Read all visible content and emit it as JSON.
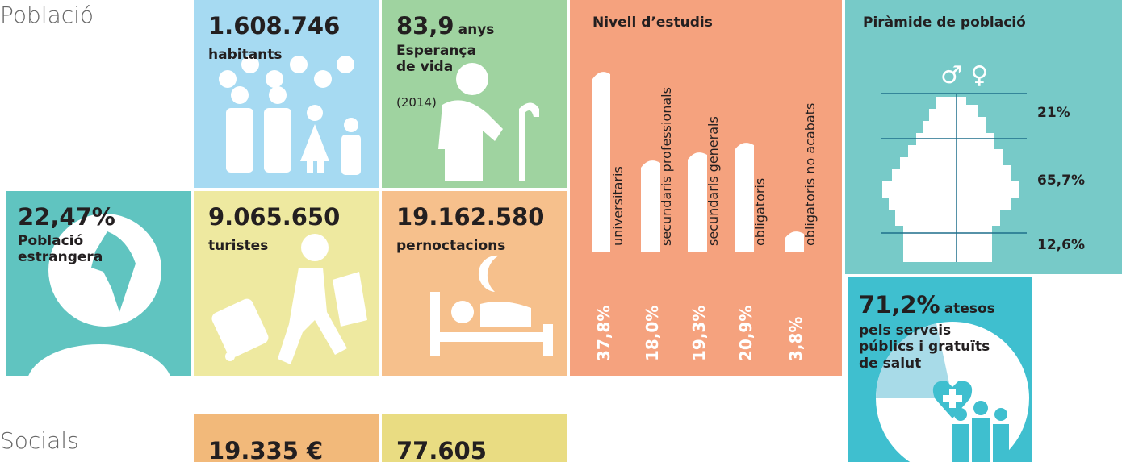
{
  "headings": [
    "Població",
    "Socials"
  ],
  "habitants": {
    "value": "1.608.746",
    "label": "habitants"
  },
  "esperanca": {
    "value": "83,9",
    "unit": "anys",
    "label": "Esperança de vida",
    "note": "(2014)"
  },
  "estrangera": {
    "value": "22,47%",
    "label": "Població estrangera"
  },
  "turistes": {
    "value": "9.065.650",
    "label": "turistes"
  },
  "pernoctacions": {
    "value": "19.162.580",
    "label": "pernoctacions"
  },
  "estudis": {
    "title": "Nivell d’estudis",
    "levels": [
      {
        "value": "37,8%",
        "label": "universitaris"
      },
      {
        "value": "18,0%",
        "label": "secundaris professionals"
      },
      {
        "value": "19,3%",
        "label": "secundaris generals"
      },
      {
        "value": "20,9%",
        "label": "obligatoris"
      },
      {
        "value": "3,8%",
        "label": "obligatoris no acabats"
      }
    ]
  },
  "piramide": {
    "title": "Piràmide de població",
    "symbols": "♂ ♀",
    "bands": [
      "21%",
      "65,7%",
      "12,6%"
    ]
  },
  "salut": {
    "value": "71,2%",
    "unit": "atesos",
    "label": "pels serveis públics i gratuïts de salut"
  },
  "socials": [
    {
      "value": "19.335 €"
    },
    {
      "value": "77.605"
    }
  ]
}
